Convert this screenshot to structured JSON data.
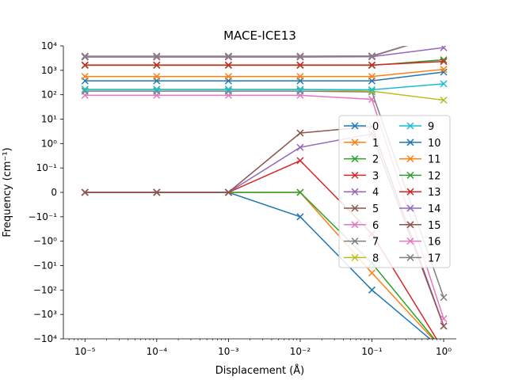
{
  "chart_data": {
    "type": "line",
    "title": "MACE-ICE13",
    "xlabel": "Displacement (Å)",
    "ylabel": "Frequency (cm⁻¹)",
    "x_scale": "log",
    "y_scale": "symlog",
    "symlog_linthresh": 0.1,
    "xlim": [
      5e-06,
      1.5
    ],
    "ylim": [
      -10000,
      10000
    ],
    "x_ticks": [
      1e-05,
      0.0001,
      0.001,
      0.01,
      0.1,
      1
    ],
    "x_tick_labels": [
      "10⁻⁵",
      "10⁻⁴",
      "10⁻³",
      "10⁻²",
      "10⁻¹",
      "10⁰"
    ],
    "y_ticks": [
      10000,
      1000,
      100,
      10,
      1,
      0.1,
      0,
      -0.1,
      -1,
      -10,
      -100,
      -1000,
      -10000
    ],
    "y_tick_labels": [
      "10⁴",
      "10³",
      "10²",
      "10¹",
      "10⁰",
      "10⁻¹",
      "0",
      "−10⁻¹",
      "−10⁰",
      "−10¹",
      "−10²",
      "−10³",
      "−10⁴"
    ],
    "grid": false,
    "legend_position": "center-right",
    "legend_columns": 2,
    "marker": "x",
    "x": [
      1e-05,
      0.0001,
      0.001,
      0.01,
      0.1,
      1
    ],
    "series": [
      {
        "name": "0",
        "color": "#1f77b4",
        "values": [
          0,
          0,
          0,
          -0.1,
          -100,
          -30000
        ]
      },
      {
        "name": "1",
        "color": "#ff7f0e",
        "values": [
          0,
          0,
          0,
          0,
          -20,
          -30000
        ]
      },
      {
        "name": "2",
        "color": "#2ca02c",
        "values": [
          0,
          0,
          0,
          0,
          -8,
          -30000
        ]
      },
      {
        "name": "3",
        "color": "#d62728",
        "values": [
          0,
          0,
          0,
          0.2,
          -0.5,
          -30000
        ]
      },
      {
        "name": "4",
        "color": "#9467bd",
        "values": [
          0,
          0,
          0,
          0.7,
          2.5,
          -3000
        ]
      },
      {
        "name": "5",
        "color": "#8c564b",
        "values": [
          0,
          0,
          0,
          2.7,
          5,
          -3000
        ]
      },
      {
        "name": "6",
        "color": "#e377c2",
        "values": [
          95,
          95,
          95,
          95,
          65,
          -1500
        ]
      },
      {
        "name": "7",
        "color": "#7f7f7f",
        "values": [
          140,
          140,
          140,
          140,
          130,
          -200
        ]
      },
      {
        "name": "8",
        "color": "#bcbd22",
        "values": [
          165,
          165,
          165,
          165,
          140,
          60
        ]
      },
      {
        "name": "9",
        "color": "#17becf",
        "values": [
          165,
          165,
          165,
          165,
          160,
          280
        ]
      },
      {
        "name": "10",
        "color": "#1f77b4",
        "values": [
          370,
          370,
          370,
          370,
          370,
          850
        ]
      },
      {
        "name": "11",
        "color": "#ff7f0e",
        "values": [
          560,
          560,
          560,
          560,
          560,
          1100
        ]
      },
      {
        "name": "12",
        "color": "#2ca02c",
        "values": [
          1600,
          1600,
          1600,
          1600,
          1600,
          2700
        ]
      },
      {
        "name": "13",
        "color": "#d62728",
        "values": [
          1650,
          1650,
          1650,
          1650,
          1650,
          2300
        ]
      },
      {
        "name": "14",
        "color": "#9467bd",
        "values": [
          3500,
          3500,
          3500,
          3500,
          3600,
          8500
        ]
      },
      {
        "name": "15",
        "color": "#8c564b",
        "values": [
          3600,
          3600,
          3600,
          3600,
          3700,
          30000
        ]
      },
      {
        "name": "16",
        "color": "#e377c2",
        "values": [
          3700,
          3700,
          3700,
          3700,
          3800,
          30000
        ]
      },
      {
        "name": "17",
        "color": "#7f7f7f",
        "values": [
          3800,
          3800,
          3800,
          3800,
          3900,
          30000
        ]
      }
    ]
  }
}
